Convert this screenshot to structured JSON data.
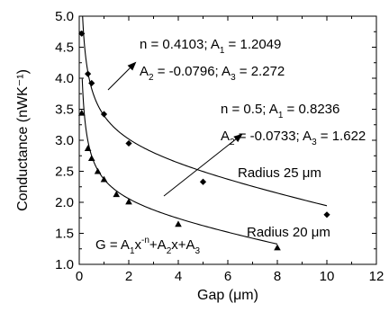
{
  "chart_data": {
    "type": "scatter",
    "xlabel": "Gap (μm)",
    "ylabel": "Conductance (nWK⁻¹)",
    "xlim": [
      0,
      12
    ],
    "ylim": [
      1.0,
      5.0
    ],
    "x_ticks": [
      "0",
      "2",
      "4",
      "6",
      "8",
      "10",
      "12"
    ],
    "y_ticks": [
      "1.0",
      "1.5",
      "2.0",
      "2.5",
      "3.0",
      "3.5",
      "4.0",
      "4.5",
      "5.0"
    ],
    "series": [
      {
        "name": "Radius 25 μm",
        "marker": "diamond",
        "x": [
          0.1,
          0.35,
          0.5,
          1.0,
          2.0,
          5.0,
          10.0
        ],
        "y": [
          4.72,
          4.07,
          3.92,
          3.42,
          2.95,
          2.33,
          1.8
        ],
        "fit": {
          "n": 0.4103,
          "A1": 1.2049,
          "A2": -0.0796,
          "A3": 2.272
        }
      },
      {
        "name": "Radius 20 μm",
        "marker": "triangle",
        "x": [
          0.1,
          0.35,
          0.5,
          0.75,
          1.0,
          1.5,
          2.0,
          4.0,
          8.0
        ],
        "y": [
          3.44,
          2.87,
          2.71,
          2.5,
          2.37,
          2.13,
          2.01,
          1.65,
          1.27
        ],
        "fit": {
          "n": 0.5,
          "A1": 0.8236,
          "A2": -0.0733,
          "A3": 1.622
        }
      }
    ],
    "fit_label_top": {
      "line1": [
        "n = 0.4103; A",
        "1",
        " = 1.2049"
      ],
      "line2": [
        "A",
        "2",
        " = -0.0796; A",
        "3",
        " = 2.272"
      ]
    },
    "fit_label_bottom": {
      "line1": [
        "n = 0.5; A",
        "1",
        " = 0.8236"
      ],
      "line2": [
        "A",
        "2",
        " = -0.0733; A",
        "3",
        " = 1.622"
      ]
    },
    "equation": [
      "G = A",
      "1",
      "x",
      "-n",
      "+A",
      "2",
      "x+A",
      "3"
    ],
    "series_labels": [
      "Radius 25 μm",
      "Radius 20 μm"
    ]
  }
}
